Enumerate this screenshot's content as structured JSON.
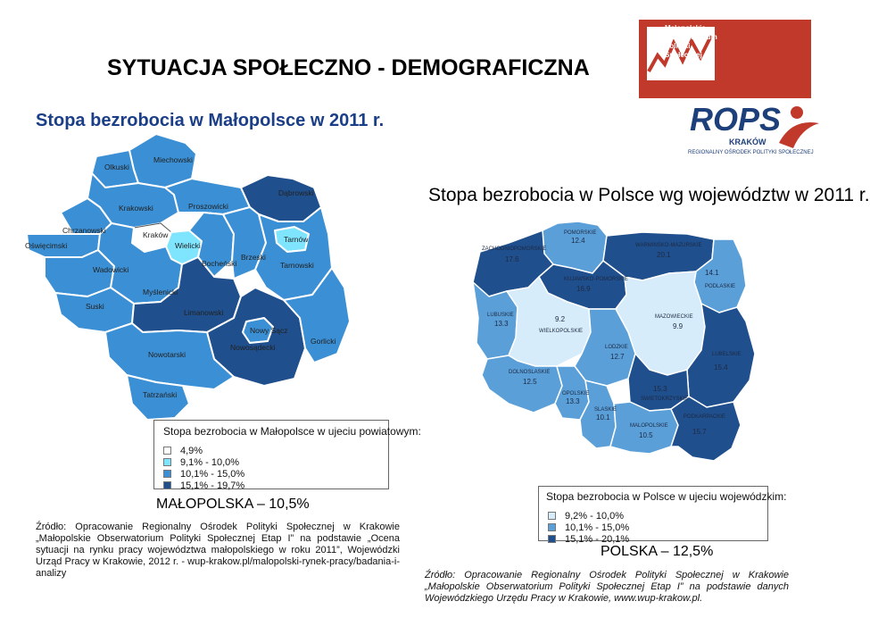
{
  "title": "SYTUACJA SPOŁECZNO - DEMOGRAFICZNA",
  "subtitle": "Stopa bezrobocia w Małopolsce w 2011 r.",
  "poland_title": "Stopa bezrobocia w Polsce wg województw w 2011 r.",
  "colors": {
    "c1": "#ffffff",
    "c2": "#7fe5ff",
    "c3": "#3b8fd4",
    "c4": "#1f4f8c",
    "subtitle": "#1a3e87",
    "logo_red": "#c0392b"
  },
  "malopolska": {
    "counties": [
      {
        "name": "Olkuski",
        "cls": "c3"
      },
      {
        "name": "Miechowski",
        "cls": "c3"
      },
      {
        "name": "Krakowski",
        "cls": "c3"
      },
      {
        "name": "Proszowicki",
        "cls": "c3"
      },
      {
        "name": "Dąbrowski",
        "cls": "c4"
      },
      {
        "name": "Chrzanowski",
        "cls": "c3"
      },
      {
        "name": "Kraków",
        "cls": "c1"
      },
      {
        "name": "Wielicki",
        "cls": "c2"
      },
      {
        "name": "Tarnów",
        "cls": "c2"
      },
      {
        "name": "Oświęcimski",
        "cls": "c3"
      },
      {
        "name": "Bocheński",
        "cls": "c3"
      },
      {
        "name": "Brzeski",
        "cls": "c3"
      },
      {
        "name": "Tarnowski",
        "cls": "c3"
      },
      {
        "name": "Wadowicki",
        "cls": "c3"
      },
      {
        "name": "Myślenicki",
        "cls": "c3"
      },
      {
        "name": "Suski",
        "cls": "c3"
      },
      {
        "name": "Limanowski",
        "cls": "c4"
      },
      {
        "name": "Nowy Sącz",
        "cls": "c3"
      },
      {
        "name": "Nowosądecki",
        "cls": "c4"
      },
      {
        "name": "Gorlicki",
        "cls": "c3"
      },
      {
        "name": "Nowotarski",
        "cls": "c3"
      },
      {
        "name": "Tatrzański",
        "cls": "c3"
      }
    ],
    "legend": {
      "title": "Stopa bezrobocia w Małopolsce w ujeciu powiatowym:",
      "items": [
        {
          "label": "4,9%",
          "color": "#ffffff"
        },
        {
          "label": "9,1% - 10,0%",
          "color": "#7fe5ff"
        },
        {
          "label": "10,1% - 15,0%",
          "color": "#3b8fd4"
        },
        {
          "label": "15,1% - 19,7%",
          "color": "#1f4f8c"
        }
      ]
    },
    "summary": "MAŁOPOLSKA – 10,5%",
    "source": "Źródło: Opracowanie Regionalny Ośrodek Polityki Społecznej w Krakowie „Małopolskie Obserwatorium Polityki Społecznej Etap I” na podstawie „Ocena sytuacji na rynku pracy województwa małopolskiego w roku 2011”, Wojewódzki Urząd Pracy w Krakowie, 2012 r. - wup-krakow.pl/malopolski-rynek-pracy/badania-i-analizy"
  },
  "poland": {
    "voivodeships": [
      {
        "name": "POMORSKIE",
        "value": "12.4"
      },
      {
        "name": "WARMINSKO-MAZURSKIE",
        "value": "20.1"
      },
      {
        "name": "ZACHODNIOPOMORSKIE",
        "value": "17.6"
      },
      {
        "name": "KUJAWSKO-POMORSKIE",
        "value": "16.9"
      },
      {
        "name": "PODLASKIE",
        "value": "14.1"
      },
      {
        "name": "LUBUSKIE",
        "value": "13.3"
      },
      {
        "name": "WIELKOPOLSKIE",
        "value": "9.2"
      },
      {
        "name": "MAZOWIECKIE",
        "value": "9.9"
      },
      {
        "name": "LODZKIE",
        "value": "12.7"
      },
      {
        "name": "LUBELSKIE",
        "value": "15.4"
      },
      {
        "name": "DOLNOSLASKIE",
        "value": "12.5"
      },
      {
        "name": "OPOLSKIE",
        "value": "13.3"
      },
      {
        "name": "SLASKIE",
        "value": "10.1"
      },
      {
        "name": "SWIETOKRZYSKIE",
        "value": "15.3"
      },
      {
        "name": "MALOPOLSKIE",
        "value": "10.5"
      },
      {
        "name": "PODKARPACKIE",
        "value": "15.7"
      }
    ],
    "legend": {
      "title": "Stopa bezrobocia w Polsce w ujeciu wojewódzkim:",
      "items": [
        {
          "label": "9,2% - 10,0%",
          "color": "#d6ecfa"
        },
        {
          "label": "10,1% - 15,0%",
          "color": "#5a9fd8"
        },
        {
          "label": "15,1% - 20,1%",
          "color": "#1f4f8c"
        }
      ]
    },
    "summary": "POLSKA – 12,5%",
    "source": "Źródło: Opracowanie Regionalny Ośrodek Polityki Społecznej w Krakowie „Małopolskie Obserwatorium Polityki Społecznej Etap I” na podstawie danych Wojewódzkiego Urzędu Pracy w Krakowie, www.wup-krakow.pl."
  },
  "logo": {
    "line1": "Małopolskie",
    "line2": "Obserwatorium",
    "line3": "Polityki",
    "line4": "Społecznej",
    "brand": "ROPS",
    "city": "KRAKÓW",
    "org": "REGIONALNY OŚRODEK POLITYKI SPOŁECZNEJ"
  }
}
